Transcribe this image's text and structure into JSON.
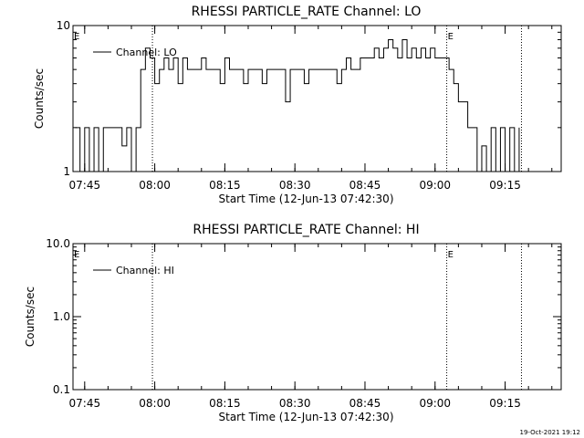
{
  "footer_text": "19-Oct-2021 19:12",
  "chart_data": [
    {
      "type": "line",
      "title": "RHESSI PARTICLE_RATE Channel: LO",
      "xlabel": "Start Time (12-Jun-13 07:42:30)",
      "ylabel": "Counts/sec",
      "ylog": true,
      "ylim": [
        1,
        10
      ],
      "yticks": [
        {
          "value": 1,
          "label": "1"
        },
        {
          "value": 10,
          "label": "10"
        }
      ],
      "xlim": [
        "07:42:30",
        "09:27:00"
      ],
      "xticks": [
        "07:45",
        "08:00",
        "08:15",
        "08:30",
        "08:45",
        "09:00",
        "09:15"
      ],
      "eclipse_lines": [
        "07:59:30",
        "09:02:30",
        "09:18:30"
      ],
      "eclipse_markers": [
        {
          "time": "07:42:30",
          "label": "E"
        },
        {
          "time": "09:02:30",
          "label": "E"
        }
      ],
      "legend": {
        "entries": [
          "Channel: LO"
        ],
        "position": "top-left"
      },
      "series": [
        {
          "name": "Channel: LO",
          "x": [
            "07:43:00",
            "07:44:00",
            "07:45:00",
            "07:46:00",
            "07:47:00",
            "07:48:00",
            "07:49:00",
            "07:50:00",
            "07:51:00",
            "07:52:00",
            "07:53:00",
            "07:54:00",
            "07:55:00",
            "07:56:00",
            "07:57:00",
            "07:58:00",
            "07:59:00",
            "08:00:00",
            "08:01:00",
            "08:02:00",
            "08:03:00",
            "08:04:00",
            "08:05:00",
            "08:06:00",
            "08:07:00",
            "08:08:00",
            "08:09:00",
            "08:10:00",
            "08:11:00",
            "08:12:00",
            "08:13:00",
            "08:14:00",
            "08:15:00",
            "08:16:00",
            "08:17:00",
            "08:18:00",
            "08:19:00",
            "08:20:00",
            "08:21:00",
            "08:22:00",
            "08:23:00",
            "08:24:00",
            "08:25:00",
            "08:26:00",
            "08:27:00",
            "08:28:00",
            "08:29:00",
            "08:30:00",
            "08:31:00",
            "08:32:00",
            "08:33:00",
            "08:34:00",
            "08:35:00",
            "08:36:00",
            "08:37:00",
            "08:38:00",
            "08:39:00",
            "08:40:00",
            "08:41:00",
            "08:42:00",
            "08:43:00",
            "08:44:00",
            "08:45:00",
            "08:46:00",
            "08:47:00",
            "08:48:00",
            "08:49:00",
            "08:50:00",
            "08:51:00",
            "08:52:00",
            "08:53:00",
            "08:54:00",
            "08:55:00",
            "08:56:00",
            "08:57:00",
            "08:58:00",
            "08:59:00",
            "09:00:00",
            "09:01:00",
            "09:02:00",
            "09:03:00",
            "09:04:00",
            "09:05:00",
            "09:06:00",
            "09:07:00",
            "09:08:00",
            "09:09:00",
            "09:10:00",
            "09:11:00",
            "09:12:00",
            "09:13:00",
            "09:14:00",
            "09:15:00",
            "09:16:00",
            "09:17:00",
            "09:18:00"
          ],
          "values": [
            2,
            1,
            2,
            1,
            2,
            1,
            2,
            2,
            2,
            2,
            1.5,
            2,
            1,
            2,
            5,
            7,
            6,
            4,
            5,
            6,
            5,
            6,
            4,
            6,
            5,
            5,
            5,
            6,
            5,
            5,
            5,
            4,
            6,
            5,
            5,
            5,
            4,
            5,
            5,
            5,
            4,
            5,
            5,
            5,
            5,
            3,
            5,
            5,
            5,
            4,
            5,
            5,
            5,
            5,
            5,
            5,
            4,
            5,
            6,
            5,
            5,
            6,
            6,
            6,
            7,
            6,
            7,
            8,
            7,
            6,
            8,
            6,
            7,
            6,
            7,
            6,
            7,
            6,
            6,
            6,
            5,
            4,
            3,
            3,
            2,
            2,
            1,
            1.5,
            1,
            2,
            1,
            2,
            1,
            2,
            1,
            2
          ]
        }
      ]
    },
    {
      "type": "line",
      "title": "RHESSI PARTICLE_RATE Channel: HI",
      "xlabel": "Start Time (12-Jun-13 07:42:30)",
      "ylabel": "Counts/sec",
      "ylog": true,
      "ylim": [
        0.1,
        10
      ],
      "yticks": [
        {
          "value": 0.1,
          "label": "0.1"
        },
        {
          "value": 1,
          "label": "1.0"
        },
        {
          "value": 10,
          "label": "10.0"
        }
      ],
      "xlim": [
        "07:42:30",
        "09:27:00"
      ],
      "xticks": [
        "07:45",
        "08:00",
        "08:15",
        "08:30",
        "08:45",
        "09:00",
        "09:15"
      ],
      "eclipse_lines": [
        "07:59:30",
        "09:02:30",
        "09:18:30"
      ],
      "eclipse_markers": [
        {
          "time": "07:42:30",
          "label": "E"
        },
        {
          "time": "09:02:30",
          "label": "E"
        }
      ],
      "legend": {
        "entries": [
          "Channel: HI"
        ],
        "position": "top-left"
      },
      "series": [
        {
          "name": "Channel: HI",
          "x": [],
          "values": []
        }
      ]
    }
  ]
}
